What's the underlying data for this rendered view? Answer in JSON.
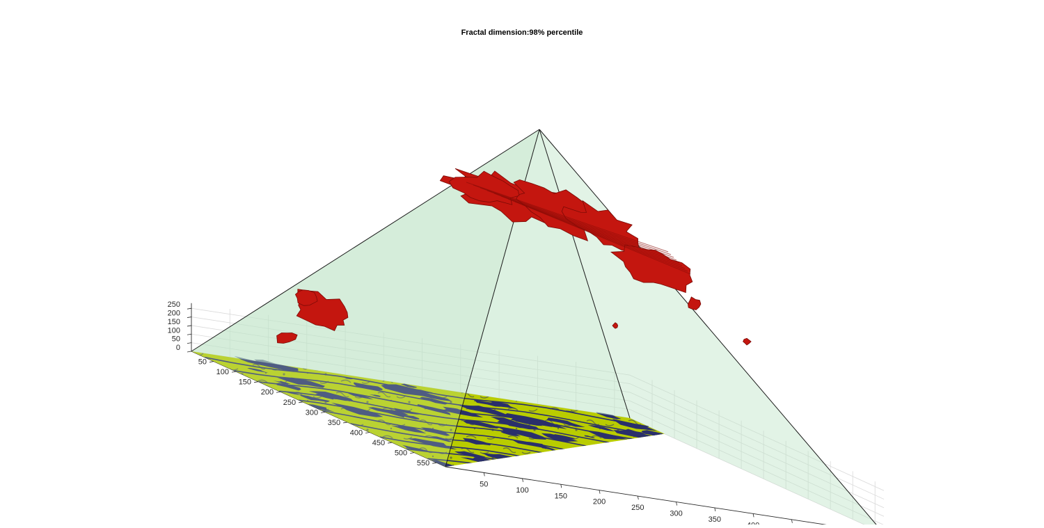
{
  "chart_data": {
    "type": "surface3d",
    "title": "Fractal dimension:98% percentile",
    "xlabel": "",
    "ylabel": "",
    "zlabel": "",
    "x_ticks": [
      50,
      100,
      150,
      200,
      250,
      300,
      350,
      400,
      450,
      500,
      550
    ],
    "y_ticks": [
      50,
      100,
      150,
      200,
      250,
      300,
      350,
      400,
      450,
      500,
      550
    ],
    "z_ticks": [
      0,
      50,
      100,
      150,
      200,
      250
    ],
    "xlim": [
      0,
      570
    ],
    "ylim": [
      0,
      570
    ],
    "zlim": [
      0,
      280
    ],
    "grid": true,
    "colors": {
      "base_land": "#b9cc00",
      "base_water": "#2a2f6b",
      "pyramid": "#bfe5c8",
      "isosurface": "#c4160f"
    }
  }
}
